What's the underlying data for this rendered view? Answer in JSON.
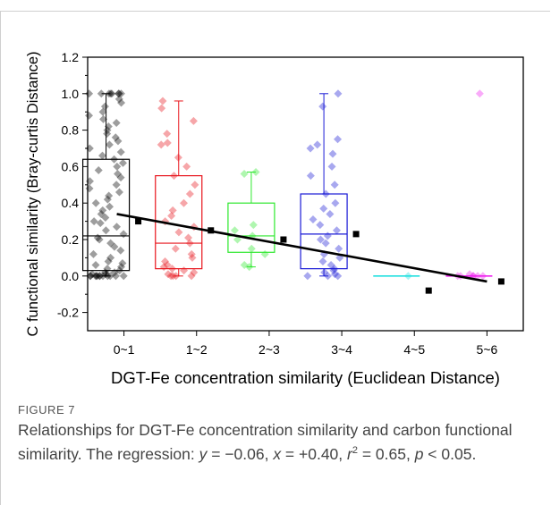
{
  "figure": {
    "label": "FIGURE 7",
    "caption": {
      "intro": "Relationships for DGT-Fe concentration similarity and carbon functional similarity. The regression: ",
      "y_var": "y",
      "y_eq": " = −0.06, ",
      "x_var": "x",
      "x_eq": " = +0.40, ",
      "r_var": "r",
      "r_exp": "2",
      "r_eq": " = 0.65, ",
      "p_var": "p",
      "p_eq": " < 0.05."
    }
  },
  "chart_data": {
    "type": "box",
    "xlabel": "DGT-Fe concentration similarity (Euclidean Distance)",
    "ylabel": "C functional similarity (Bray-curtis Distance)",
    "categories": [
      "0~1",
      "1~2",
      "2~3",
      "3~4",
      "4~5",
      "5~6"
    ],
    "ylim": [
      -0.3,
      1.2
    ],
    "yticks": [
      -0.2,
      0.0,
      0.2,
      0.4,
      0.6,
      0.8,
      1.0,
      1.2
    ],
    "ytick_labels": [
      "-0.2",
      "0.0",
      "0.2",
      "0.4",
      "0.6",
      "0.8",
      "1.0",
      "1.2"
    ],
    "colors": [
      "#000000",
      "#e8141c",
      "#2ee82e",
      "#1a1ad6",
      "#22e0e0",
      "#ee22ee"
    ],
    "boxes": [
      {
        "category": "0~1",
        "q1": 0.03,
        "median": 0.22,
        "q3": 0.64,
        "whisker_low": 0.0,
        "whisker_high": 1.0,
        "mean": 0.3
      },
      {
        "category": "1~2",
        "q1": 0.04,
        "median": 0.18,
        "q3": 0.55,
        "whisker_low": 0.0,
        "whisker_high": 0.96,
        "mean": 0.25
      },
      {
        "category": "2~3",
        "q1": 0.13,
        "median": 0.22,
        "q3": 0.4,
        "whisker_low": 0.05,
        "whisker_high": 0.57,
        "mean": 0.2
      },
      {
        "category": "3~4",
        "q1": 0.04,
        "median": 0.23,
        "q3": 0.45,
        "whisker_low": 0.0,
        "whisker_high": 1.0,
        "mean": 0.23
      },
      {
        "category": "4~5",
        "q1": 0.0,
        "median": 0.0,
        "q3": 0.0,
        "whisker_low": 0.0,
        "whisker_high": 0.0,
        "mean": -0.08
      },
      {
        "category": "5~6",
        "q1": 0.0,
        "median": 0.0,
        "q3": 0.0,
        "whisker_low": 0.0,
        "whisker_high": 0.0,
        "mean": -0.03
      }
    ],
    "scatter": [
      {
        "category": "0~1",
        "values": [
          1.0,
          1.0,
          1.0,
          1.0,
          1.0,
          1.0,
          1.0,
          1.0,
          0.97,
          0.95,
          0.93,
          0.9,
          0.88,
          0.86,
          0.84,
          0.82,
          0.8,
          0.78,
          0.76,
          0.74,
          0.72,
          0.7,
          0.68,
          0.66,
          0.64,
          0.62,
          0.6,
          0.58,
          0.56,
          0.54,
          0.52,
          0.5,
          0.48,
          0.46,
          0.44,
          0.42,
          0.4,
          0.38,
          0.36,
          0.34,
          0.32,
          0.3,
          0.29,
          0.27,
          0.25,
          0.23,
          0.21,
          0.2,
          0.18,
          0.16,
          0.14,
          0.12,
          0.1,
          0.08,
          0.07,
          0.06,
          0.05,
          0.04,
          0.03,
          0.02,
          0.02,
          0.01,
          0.01,
          0.0,
          0.0,
          0.0,
          0.0,
          0.0,
          0.0,
          0.0,
          0.0,
          0.0,
          0.0,
          0.0,
          0.0
        ]
      },
      {
        "category": "1~2",
        "values": [
          0.96,
          0.92,
          0.85,
          0.78,
          0.73,
          0.72,
          0.65,
          0.6,
          0.55,
          0.5,
          0.45,
          0.4,
          0.36,
          0.33,
          0.3,
          0.27,
          0.24,
          0.21,
          0.18,
          0.15,
          0.12,
          0.1,
          0.08,
          0.06,
          0.05,
          0.04,
          0.03,
          0.02,
          0.01,
          0.0,
          0.0,
          0.0,
          0.0
        ]
      },
      {
        "category": "2~3",
        "values": [
          0.57,
          0.56,
          0.28,
          0.25,
          0.22,
          0.2,
          0.15,
          0.12,
          0.06,
          0.05
        ]
      },
      {
        "category": "3~4",
        "values": [
          1.0,
          0.93,
          0.75,
          0.72,
          0.7,
          0.67,
          0.6,
          0.55,
          0.5,
          0.45,
          0.4,
          0.37,
          0.34,
          0.31,
          0.28,
          0.25,
          0.22,
          0.2,
          0.18,
          0.15,
          0.12,
          0.1,
          0.08,
          0.06,
          0.04,
          0.03,
          0.02,
          0.01,
          0.0,
          0.0,
          0.0
        ]
      },
      {
        "category": "4~5",
        "values": [
          0.0
        ]
      },
      {
        "category": "5~6",
        "values": [
          1.0,
          0.01,
          0.0,
          0.0,
          0.0,
          0.0,
          0.0,
          0.0
        ]
      }
    ],
    "regression": {
      "x_start": "0~1",
      "y_start": 0.34,
      "x_end": "5~6",
      "y_end": -0.03
    }
  }
}
